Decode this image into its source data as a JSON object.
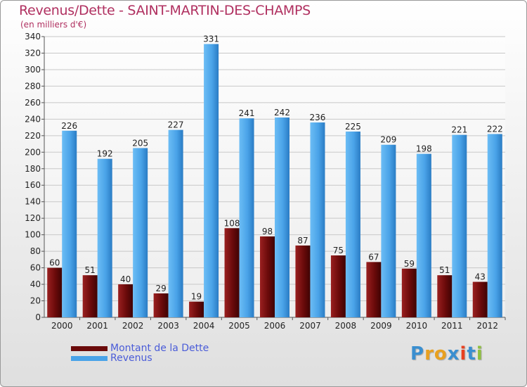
{
  "chart_data": {
    "type": "bar",
    "title": "Revenus/Dette - SAINT-MARTIN-DES-CHAMPS",
    "subtitle": "(en milliers d'€)",
    "categories": [
      "2000",
      "2001",
      "2002",
      "2003",
      "2004",
      "2005",
      "2006",
      "2007",
      "2008",
      "2009",
      "2010",
      "2011",
      "2012"
    ],
    "series": [
      {
        "name": "Montant de la Dette",
        "values": [
          60,
          51,
          40,
          29,
          19,
          108,
          98,
          87,
          75,
          67,
          59,
          51,
          43
        ],
        "color": "#7a1010"
      },
      {
        "name": "Revenus",
        "values": [
          226,
          192,
          205,
          227,
          331,
          241,
          242,
          236,
          225,
          209,
          198,
          221,
          222
        ],
        "color": "#4aa3e8"
      }
    ],
    "yticks": [
      0,
      20,
      40,
      60,
      80,
      100,
      120,
      140,
      160,
      180,
      200,
      220,
      240,
      260,
      280,
      300,
      320,
      340
    ],
    "ylim": [
      0,
      340
    ],
    "grid": true,
    "legend_position": "bottom-left"
  },
  "logo": {
    "text": "Proxiti",
    "letters": [
      "P",
      "r",
      "o",
      "x",
      "i",
      "t",
      "i"
    ],
    "colors": [
      "#3a8fd0",
      "#e8a020",
      "#e8a020",
      "#3a8fd0",
      "#e84020",
      "#3a8fd0",
      "#8fc040"
    ]
  }
}
